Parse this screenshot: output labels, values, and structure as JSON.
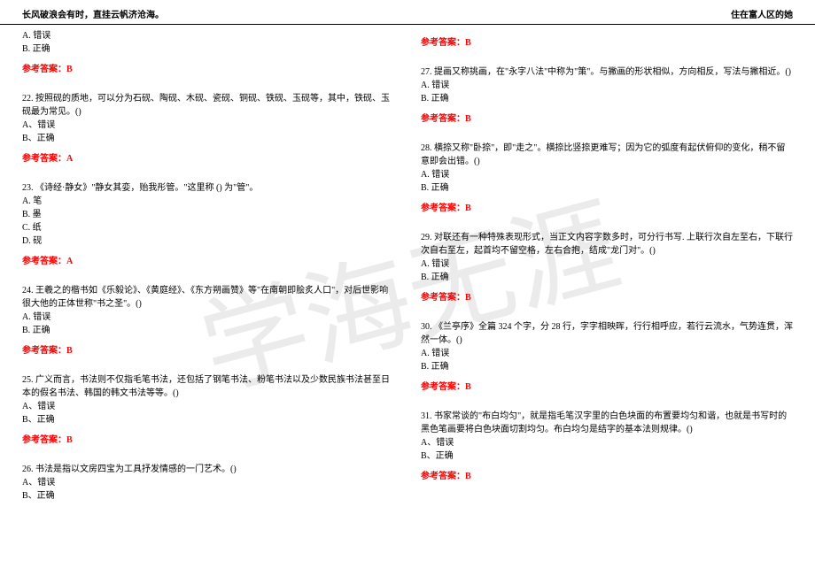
{
  "header": {
    "left": "长风破浪会有时，直挂云帆济沧海。",
    "right": "住在富人区的她"
  },
  "watermark": "学海无涯",
  "colors": {
    "answer": "#ff0000",
    "text": "#000000",
    "background": "#ffffff",
    "watermark": "rgba(0,0,0,0.08)"
  },
  "leftColumn": [
    {
      "question": "",
      "options": [
        "A. 错误",
        "B. 正确"
      ],
      "answer": "参考答案：B"
    },
    {
      "question": "22. 按照砚的质地，可以分为石砚、陶砚、木砚、瓷砚、铜砚、铁砚、玉砚等，其中，铁砚、玉砚最为常见。()",
      "options": [
        "A、错误",
        "B、正确"
      ],
      "answer": "参考答案：A"
    },
    {
      "question": "23. 《诗经·静女》\"静女其娈，贻我彤管。\"这里称 () 为\"管\"。",
      "options": [
        "A. 笔",
        "B. 墨",
        "C. 纸",
        "D. 砚"
      ],
      "answer": "参考答案：A"
    },
    {
      "question": "24. 王羲之的楷书如《乐毅论》、《黄庭经》、《东方朔画赞》等\"在南朝即脍炙人口\"，对后世影响很大他的正体世称\"书之圣\"。()",
      "options": [
        "A. 错误",
        "B. 正确"
      ],
      "answer": "参考答案：B"
    },
    {
      "question": "25. 广义而言，书法则不仅指毛笔书法，还包括了钢笔书法、粉笔书法以及少数民族书法甚至日本的假名书法、韩国的韩文书法等等。()",
      "options": [
        "A、错误",
        "B、正确"
      ],
      "answer": "参考答案：B"
    },
    {
      "question": "26. 书法是指以文房四宝为工具抒发情感的一门艺术。()",
      "options": [
        "A、错误",
        "B、正确"
      ],
      "answer": ""
    }
  ],
  "rightColumn": [
    {
      "question": "",
      "options": [],
      "answer": "参考答案：B"
    },
    {
      "question": "27. 提画又称挑画，在\"永字八法\"中称为\"策\"。与撇画的形状相似，方向相反，写法与撇相近。()",
      "options": [
        "A. 错误",
        "B. 正确"
      ],
      "answer": "参考答案：B"
    },
    {
      "question": "28. 横捺又称\"卧捺\"，即\"走之\"。横捺比竖捺更难写；因为它的弧度有起伏俯仰的变化，稍不留意即会出错。()",
      "options": [
        "A. 错误",
        "B. 正确"
      ],
      "answer": "参考答案：B"
    },
    {
      "question": "29. 对联还有一种特殊表现形式，当正文内容字数多时，可分行书写. 上联行次自左至右，下联行次自右至左，起首均不留空格，左右合抱，结成\"龙门对\"。()",
      "options": [
        "A. 错误",
        "B. 正确"
      ],
      "answer": "参考答案：B"
    },
    {
      "question": "30. 《兰亭序》全篇 324 个字，分 28 行，字字相映晖，行行相呼应，若行云流水，气势连贯，浑然一体。()",
      "options": [
        "A. 错误",
        "B. 正确"
      ],
      "answer": "参考答案：B"
    },
    {
      "question": "31. 书家常谈的\"布白均匀\"，就是指毛笔汉字里的白色块面的布置要均匀和谐，也就是书写时的黑色笔画要将白色块面切割均匀。布白均匀是结字的基本法则规律。()",
      "options": [
        "A、错误",
        "B、正确"
      ],
      "answer": "参考答案：B"
    }
  ]
}
